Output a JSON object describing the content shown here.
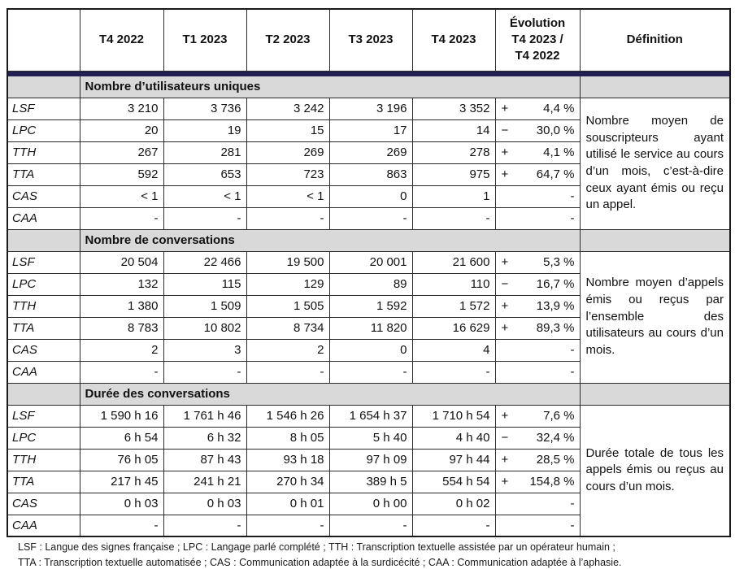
{
  "table": {
    "column_headers": [
      "",
      "T4 2022",
      "T1 2023",
      "T2 2023",
      "T3 2023",
      "T4 2023"
    ],
    "evolution_header": "Évolution\nT4 2023 /\nT4 2022",
    "definition_header": "Définition",
    "sections": [
      {
        "title": "Nombre d’utilisateurs uniques",
        "definition": "Nombre moyen de souscripteurs ayant utilisé le service au cours d’un mois, c’est-à-dire ceux ayant émis ou reçu un appel.",
        "rows": [
          {
            "label": "LSF",
            "values": [
              "3 210",
              "3 736",
              "3 242",
              "3 196",
              "3 352"
            ],
            "evolution_sign": "+",
            "evolution_value": "4,4 %"
          },
          {
            "label": "LPC",
            "values": [
              "20",
              "19",
              "15",
              "17",
              "14"
            ],
            "evolution_sign": "−",
            "evolution_value": "30,0 %"
          },
          {
            "label": "TTH",
            "values": [
              "267",
              "281",
              "269",
              "269",
              "278"
            ],
            "evolution_sign": "+",
            "evolution_value": "4,1 %"
          },
          {
            "label": "TTA",
            "values": [
              "592",
              "653",
              "723",
              "863",
              "975"
            ],
            "evolution_sign": "+",
            "evolution_value": "64,7 %"
          },
          {
            "label": "CAS",
            "values": [
              "< 1",
              "< 1",
              "< 1",
              "0",
              "1"
            ],
            "evolution_sign": "",
            "evolution_value": "-"
          },
          {
            "label": "CAA",
            "values": [
              "-",
              "-",
              "-",
              "-",
              "-"
            ],
            "evolution_sign": "",
            "evolution_value": "-"
          }
        ]
      },
      {
        "title": "Nombre de conversations",
        "definition": "Nombre moyen d’appels émis ou reçus par l’ensemble des utilisateurs au cours d’un mois.",
        "rows": [
          {
            "label": "LSF",
            "values": [
              "20 504",
              "22 466",
              "19 500",
              "20 001",
              "21 600"
            ],
            "evolution_sign": "+",
            "evolution_value": "5,3 %"
          },
          {
            "label": "LPC",
            "values": [
              "132",
              "115",
              "129",
              "89",
              "110"
            ],
            "evolution_sign": "−",
            "evolution_value": "16,7 %"
          },
          {
            "label": "TTH",
            "values": [
              "1 380",
              "1 509",
              "1 505",
              "1 592",
              "1 572"
            ],
            "evolution_sign": "+",
            "evolution_value": "13,9 %"
          },
          {
            "label": "TTA",
            "values": [
              "8 783",
              "10 802",
              "8 734",
              "11 820",
              "16 629"
            ],
            "evolution_sign": "+",
            "evolution_value": "89,3 %"
          },
          {
            "label": "CAS",
            "values": [
              "2",
              "3",
              "2",
              "0",
              "4"
            ],
            "evolution_sign": "",
            "evolution_value": "-"
          },
          {
            "label": "CAA",
            "values": [
              "-",
              "-",
              "-",
              "-",
              "-"
            ],
            "evolution_sign": "",
            "evolution_value": "-"
          }
        ]
      },
      {
        "title": "Durée des conversations",
        "definition": "Durée totale de tous les appels émis ou reçus au cours d’un mois.",
        "rows": [
          {
            "label": "LSF",
            "values": [
              "1 590 h 16",
              "1 761 h 46",
              "1 546 h 26",
              "1 654 h 37",
              "1 710 h 54"
            ],
            "evolution_sign": "+",
            "evolution_value": "7,6 %"
          },
          {
            "label": "LPC",
            "values": [
              "6 h 54",
              "6 h 32",
              "8 h 05",
              "5 h 40",
              "4 h 40"
            ],
            "evolution_sign": "−",
            "evolution_value": "32,4 %"
          },
          {
            "label": "TTH",
            "values": [
              "76 h 05",
              "87 h 43",
              "93 h 18",
              "97 h 09",
              "97 h 44"
            ],
            "evolution_sign": "+",
            "evolution_value": "28,5 %"
          },
          {
            "label": "TTA",
            "values": [
              "217 h 45",
              "241 h 21",
              "270 h 34",
              "389 h 5",
              "554 h 54"
            ],
            "evolution_sign": "+",
            "evolution_value": "154,8 %"
          },
          {
            "label": "CAS",
            "values": [
              "0 h 03",
              "0 h 03",
              "0 h 01",
              "0 h 00",
              "0 h 02"
            ],
            "evolution_sign": "",
            "evolution_value": "-"
          },
          {
            "label": "CAA",
            "values": [
              "-",
              "-",
              "-",
              "-",
              "-"
            ],
            "evolution_sign": "",
            "evolution_value": "-"
          }
        ]
      }
    ]
  },
  "footnotes": [
    "LSF : Langue des signes française ; LPC : Langage parlé complété ; TTH : Transcription textuelle assistée par un opérateur humain ;",
    "TTA : Transcription textuelle automatisée ; CAS : Communication adaptée à la surdicécité ; CAA : Communication adaptée à l’aphasie."
  ],
  "colors": {
    "separator_bar": "#231f54",
    "section_band": "#d9d9d9",
    "border": "#1a1a1a"
  }
}
